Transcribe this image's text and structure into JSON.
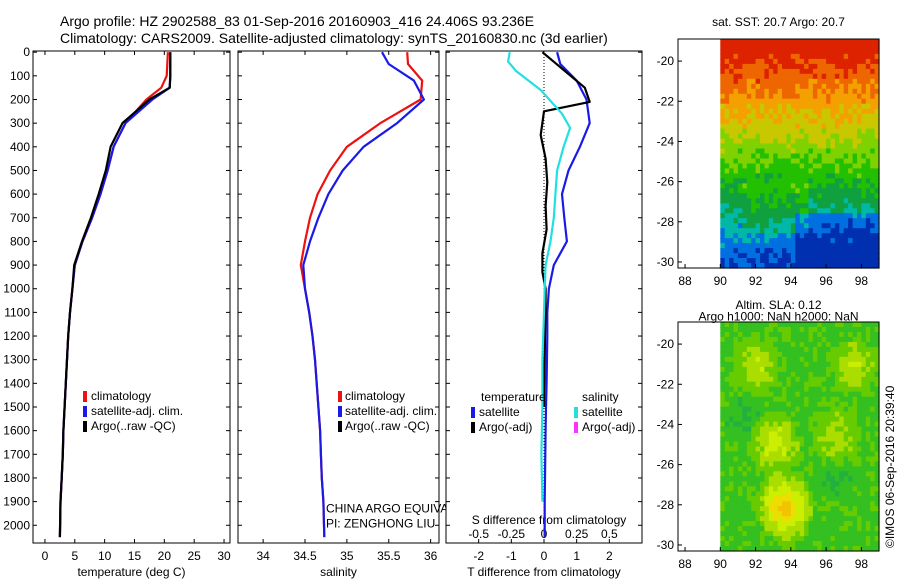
{
  "title_line1": "Argo profile: HZ 2902588_83 01-Sep-2016 20160903_416 24.406S 93.236E",
  "title_line2": "Climatology: CARS2009. Satellite-adjusted climatology: synTS_20160830.nc (3d earlier)",
  "credit": "©IMOS 06-Sep-2016 20:39:40",
  "colors": {
    "climatology": "#ee1111",
    "satellite": "#1a1ae6",
    "argo": "#000000",
    "satellite_S": "#22e0e0",
    "argo_S": "#ff33ff"
  },
  "chart_data": [
    {
      "id": "temperature",
      "type": "line",
      "xlabel": "temperature (deg C)",
      "ylabel": "",
      "xlim": [
        -2,
        31
      ],
      "ylim": [
        2075,
        -5
      ],
      "xticks": [
        0,
        5,
        10,
        15,
        20,
        25,
        30
      ],
      "yticks": [
        0,
        100,
        200,
        300,
        400,
        500,
        600,
        700,
        800,
        900,
        1000,
        1100,
        1200,
        1300,
        1400,
        1500,
        1600,
        1700,
        1800,
        1900,
        2000
      ],
      "legend": {
        "placement": "lower-left",
        "entries": [
          "climatology",
          "satellite-adj. clim.",
          "Argo(..raw -QC)"
        ]
      },
      "series": [
        {
          "name": "climatology",
          "color_key": "climatology",
          "x": [
            20.6,
            20.4,
            19.5,
            17.0,
            13.5,
            11.5,
            10.5,
            9.3,
            7.9,
            6.3,
            5.0,
            4.6,
            4.2,
            3.9,
            3.7,
            3.5,
            3.3,
            3.1,
            3.0,
            2.8,
            2.6,
            2.5
          ],
          "y": [
            0,
            100,
            150,
            200,
            300,
            400,
            500,
            600,
            700,
            800,
            900,
            1000,
            1100,
            1200,
            1300,
            1400,
            1500,
            1600,
            1700,
            1800,
            1900,
            2050
          ]
        },
        {
          "name": "satellite-adj. clim.",
          "color_key": "satellite",
          "x": [
            21.0,
            21.0,
            20.9,
            18.0,
            13.5,
            11.5,
            10.5,
            9.3,
            7.9,
            6.3,
            5.0,
            4.6,
            4.2,
            3.9,
            3.7,
            3.5,
            3.3,
            3.1,
            3.0,
            2.8,
            2.6,
            2.5
          ],
          "y": [
            0,
            100,
            150,
            200,
            300,
            400,
            500,
            600,
            700,
            800,
            900,
            1000,
            1100,
            1200,
            1300,
            1400,
            1500,
            1600,
            1700,
            1800,
            1900,
            2050
          ]
        },
        {
          "name": "Argo(..raw -QC)",
          "color_key": "argo",
          "x": [
            21.0,
            21.0,
            20.9,
            17.5,
            13.0,
            11.0,
            10.2,
            9.0,
            7.7,
            6.2,
            4.9,
            4.6,
            4.2,
            3.9,
            3.7,
            3.5,
            3.3,
            3.1,
            3.0,
            2.8,
            2.6,
            2.5
          ],
          "y": [
            0,
            100,
            150,
            200,
            300,
            400,
            500,
            600,
            700,
            800,
            900,
            1000,
            1100,
            1200,
            1300,
            1400,
            1500,
            1600,
            1700,
            1800,
            1900,
            2050
          ]
        }
      ],
      "annotations": []
    },
    {
      "id": "salinity",
      "type": "line",
      "xlabel": "salinity",
      "ylabel": "",
      "xlim": [
        33.7,
        36.1
      ],
      "ylim": [
        2075,
        -5
      ],
      "xticks": [
        34,
        34.5,
        35,
        35.5,
        36
      ],
      "legend": {
        "placement": "lower-right",
        "entries": [
          "climatology",
          "satellite-adj. clim.",
          "Argo(..raw -QC)"
        ]
      },
      "series": [
        {
          "name": "climatology",
          "color_key": "climatology",
          "x": [
            35.72,
            35.73,
            35.9,
            35.88,
            35.4,
            35.0,
            34.8,
            34.65,
            34.56,
            34.5,
            34.45,
            34.5,
            34.55,
            34.59,
            34.62,
            34.64,
            34.66,
            34.68,
            34.69,
            34.7,
            34.72,
            34.73
          ],
          "y": [
            0,
            50,
            120,
            200,
            300,
            400,
            500,
            600,
            700,
            800,
            900,
            1000,
            1100,
            1200,
            1300,
            1400,
            1500,
            1600,
            1700,
            1800,
            1900,
            2050
          ]
        },
        {
          "name": "satellite-adj. clim.",
          "color_key": "satellite",
          "x": [
            35.42,
            35.5,
            35.8,
            35.92,
            35.6,
            35.2,
            34.95,
            34.78,
            34.66,
            34.56,
            34.48,
            34.5,
            34.55,
            34.59,
            34.62,
            34.64,
            34.66,
            34.68,
            34.69,
            34.7,
            34.72,
            34.73
          ],
          "y": [
            0,
            50,
            120,
            200,
            300,
            400,
            500,
            600,
            700,
            800,
            900,
            1000,
            1100,
            1200,
            1300,
            1400,
            1500,
            1600,
            1700,
            1800,
            1900,
            2050
          ]
        }
      ],
      "annotations": [
        {
          "text": "CHINA ARGO EQUIVALENT",
          "x": 34.75,
          "y": 1945
        },
        {
          "text": "PI: ZENGHONG LIU",
          "x": 34.75,
          "y": 2010
        }
      ]
    },
    {
      "id": "difference",
      "type": "line",
      "xlabel": "T difference from climatology",
      "xlabel_top": "S difference from climatology",
      "ylabel": "",
      "xlim": [
        -3,
        3
      ],
      "ylim": [
        2075,
        -5
      ],
      "xticks": [
        -2,
        -1,
        0,
        1,
        2
      ],
      "xticks_S": [
        -0.5,
        -0.25,
        0,
        0.25,
        0.5
      ],
      "legend": {
        "placement": "lower-center",
        "group_titles": [
          "temperature",
          "salinity"
        ],
        "entries": [
          "satellite",
          "Argo(-adj)",
          "satellite",
          "Argo(-adj)"
        ]
      },
      "series": [
        {
          "name": "satellite",
          "color_key": "satellite",
          "x": [
            0.4,
            0.5,
            1.0,
            1.3,
            1.4,
            1.1,
            0.75,
            0.55,
            0.62,
            0.7,
            0.3,
            0.15,
            0.1,
            0.1,
            0.08,
            0.06,
            0.05,
            0.04,
            0.03,
            0.02,
            0.02
          ],
          "y": [
            0,
            50,
            120,
            200,
            300,
            400,
            500,
            600,
            700,
            800,
            900,
            1000,
            1100,
            1200,
            1400,
            1500,
            1600,
            1700,
            1800,
            1900,
            2050
          ]
        },
        {
          "name": "Argo(-adj)",
          "color_key": "argo",
          "x": [
            -0.05,
            1.25,
            1.4,
            0.0,
            -0.1,
            0.05,
            0.1,
            0.05,
            0.08,
            -0.05,
            -0.05,
            0.05,
            0.05,
            0.03,
            0.02,
            0.01,
            0.0
          ],
          "y": [
            0,
            150,
            210,
            250,
            350,
            450,
            550,
            650,
            750,
            850,
            930,
            1000,
            1100,
            1200,
            1300,
            1400,
            1500
          ]
        },
        {
          "name": "satellite",
          "color_key": "satellite_S",
          "x": [
            -1.05,
            -1.1,
            -0.85,
            -0.1,
            0.55,
            0.8,
            0.6,
            0.4,
            0.35,
            0.3,
            0.2,
            0.05,
            0.02,
            0.0,
            -0.05,
            -0.05,
            -0.08,
            -0.05
          ],
          "y": [
            0,
            40,
            80,
            160,
            260,
            320,
            400,
            500,
            600,
            700,
            800,
            900,
            1000,
            1100,
            1300,
            1500,
            1700,
            1900
          ]
        }
      ],
      "annotations": []
    },
    {
      "id": "sst_map",
      "type": "heatmap",
      "title": "sat. SST: 20.7 Argo: 20.7",
      "xlim": [
        87.6,
        99.0
      ],
      "ylim": [
        -30.3,
        -18.9
      ],
      "xticks": [
        88,
        90,
        92,
        94,
        96,
        98
      ],
      "yticks": [
        -20,
        -22,
        -24,
        -26,
        -28,
        -30
      ],
      "data_x_range": [
        90,
        99
      ],
      "colors": [
        "#dd2200",
        "#ee6600",
        "#f3a000",
        "#c9c800",
        "#7fd200",
        "#22c000",
        "#10a040",
        "#00b8a8",
        "#0070e0",
        "#0030b0"
      ],
      "levels": [
        "warm north (~23C) to cool south (~19C)"
      ]
    },
    {
      "id": "sla_map",
      "type": "heatmap",
      "title": "Altim. SLA: 0.12",
      "subtitle": "Argo h1000: NaN h2000: NaN",
      "xlim": [
        87.6,
        99.0
      ],
      "ylim": [
        -30.3,
        -18.9
      ],
      "xticks": [
        88,
        90,
        92,
        94,
        96,
        98
      ],
      "yticks": [
        -20,
        -22,
        -24,
        -26,
        -28,
        -30
      ],
      "data_x_range": [
        90,
        99
      ],
      "colors": [
        "#22b040",
        "#33c020",
        "#66cc00",
        "#aadd00",
        "#ccee00",
        "#eedd00",
        "#f2c400"
      ]
    }
  ]
}
